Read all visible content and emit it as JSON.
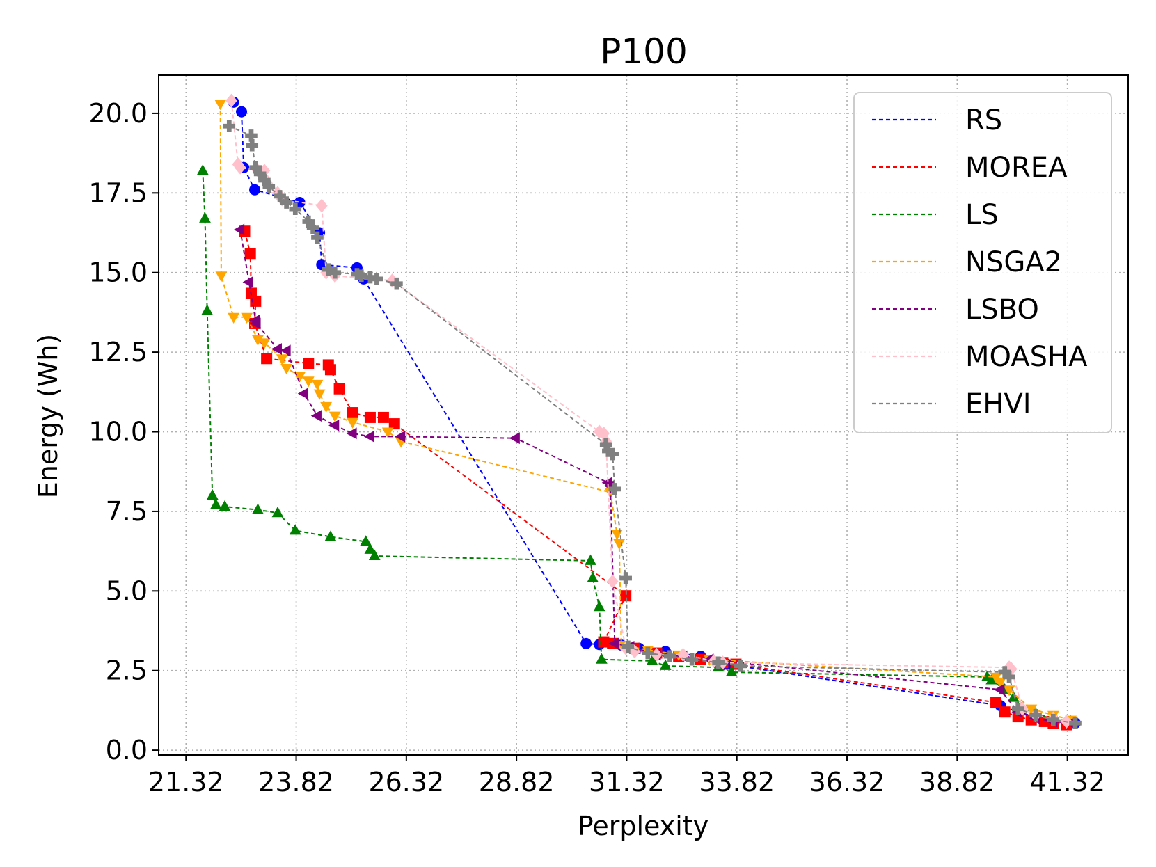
{
  "chart_data": {
    "type": "scatter",
    "title": "P100",
    "xlabel": "Perplexity",
    "ylabel": "Energy (Wh)",
    "xlim": [
      20.7,
      42.7
    ],
    "ylim": [
      -0.15,
      21.2
    ],
    "xticks": [
      "21.32",
      "23.82",
      "26.32",
      "28.82",
      "31.32",
      "33.82",
      "36.32",
      "38.82",
      "41.32"
    ],
    "xtick_values": [
      21.32,
      23.82,
      26.32,
      28.82,
      31.32,
      33.82,
      36.32,
      38.82,
      41.32
    ],
    "yticks": [
      "0.0",
      "2.5",
      "5.0",
      "7.5",
      "10.0",
      "12.5",
      "15.0",
      "17.5",
      "20.0"
    ],
    "ytick_values": [
      0,
      2.5,
      5,
      7.5,
      10,
      12.5,
      15,
      17.5,
      20
    ],
    "grid": true,
    "legend_position": "top-right",
    "series": [
      {
        "name": "RS",
        "color": "#0000ff",
        "marker": "circle",
        "x": [
          22.4,
          22.58,
          22.63,
          22.88,
          23.9,
          24.35,
          24.4,
          25.2,
          25.35,
          30.4,
          30.7,
          31.2,
          31.6,
          32.2,
          33.0,
          33.6,
          39.8,
          40.2,
          40.6,
          41.0,
          41.5
        ],
        "y": [
          20.35,
          20.05,
          18.3,
          17.6,
          17.2,
          16.25,
          15.25,
          15.15,
          14.8,
          3.35,
          3.32,
          3.3,
          3.2,
          3.1,
          2.95,
          2.7,
          1.4,
          1.2,
          1.05,
          0.95,
          0.85
        ]
      },
      {
        "name": "MOREA",
        "color": "#ff0000",
        "marker": "square",
        "x": [
          22.65,
          22.78,
          22.8,
          22.9,
          22.88,
          23.15,
          24.1,
          24.55,
          24.6,
          24.8,
          25.1,
          25.5,
          25.8,
          26.05,
          31.3,
          30.8,
          31.0,
          31.5,
          32.0,
          32.5,
          33.0,
          33.5,
          33.8,
          39.7,
          39.9,
          40.2,
          40.5,
          40.8,
          41.0,
          41.3
        ],
        "y": [
          16.3,
          15.6,
          14.35,
          14.1,
          13.4,
          12.3,
          12.15,
          12.1,
          11.95,
          11.35,
          10.6,
          10.45,
          10.45,
          10.25,
          4.85,
          3.4,
          3.35,
          3.2,
          3.05,
          2.95,
          2.85,
          2.75,
          2.7,
          1.5,
          1.2,
          1.05,
          0.95,
          0.9,
          0.85,
          0.8
        ]
      },
      {
        "name": "LS",
        "color": "#008000",
        "marker": "triangle-up",
        "x": [
          21.7,
          21.75,
          21.8,
          21.92,
          22.0,
          22.2,
          22.95,
          23.4,
          23.8,
          24.6,
          25.4,
          25.5,
          25.6,
          30.5,
          30.55,
          30.7,
          30.75,
          31.9,
          32.2,
          33.4,
          33.7,
          39.5,
          39.6,
          39.9,
          40.1,
          40.3,
          40.6,
          41.0,
          41.4
        ],
        "y": [
          18.2,
          16.7,
          13.8,
          8.0,
          7.7,
          7.65,
          7.55,
          7.45,
          6.9,
          6.7,
          6.55,
          6.3,
          6.1,
          5.95,
          5.4,
          4.5,
          2.85,
          2.8,
          2.65,
          2.6,
          2.45,
          2.3,
          2.2,
          1.9,
          1.65,
          1.35,
          1.15,
          1.0,
          0.9
        ]
      },
      {
        "name": "NSGA2",
        "color": "#ffa500",
        "marker": "triangle-down",
        "x": [
          22.1,
          22.12,
          22.4,
          22.7,
          22.95,
          23.1,
          23.5,
          23.6,
          23.9,
          24.1,
          24.3,
          24.35,
          24.5,
          24.7,
          25.1,
          25.9,
          26.2,
          30.95,
          31.1,
          31.15,
          31.2,
          31.8,
          32.5,
          33.2,
          39.7,
          39.8,
          40.0,
          40.5,
          41.0,
          41.4
        ],
        "y": [
          20.3,
          14.9,
          13.6,
          13.6,
          12.9,
          12.8,
          12.3,
          12.0,
          11.75,
          11.6,
          11.5,
          11.2,
          10.8,
          10.5,
          10.3,
          10.0,
          9.7,
          8.1,
          6.8,
          6.5,
          3.3,
          3.15,
          3.0,
          2.85,
          2.3,
          2.15,
          1.9,
          1.3,
          1.1,
          0.95
        ]
      },
      {
        "name": "LSBO",
        "color": "#800080",
        "marker": "triangle-left",
        "x": [
          22.55,
          22.75,
          22.9,
          22.92,
          23.4,
          23.6,
          24.0,
          24.3,
          24.7,
          25.1,
          25.5,
          26.2,
          28.8,
          30.9,
          30.95,
          31.05,
          31.4,
          32.0,
          32.6,
          33.2,
          39.8,
          40.2,
          40.6,
          41.0,
          41.4
        ],
        "y": [
          16.35,
          14.7,
          13.5,
          13.4,
          12.6,
          12.55,
          11.2,
          10.5,
          10.2,
          9.95,
          9.85,
          9.85,
          9.8,
          8.4,
          8.3,
          3.35,
          3.25,
          3.0,
          2.95,
          2.85,
          1.9,
          1.2,
          1.0,
          0.9,
          0.85
        ]
      },
      {
        "name": "MOASHA",
        "color": "#ffc0cb",
        "marker": "diamond",
        "x": [
          22.35,
          22.5,
          22.55,
          22.95,
          23.1,
          23.4,
          23.5,
          24.4,
          24.5,
          24.7,
          26.0,
          30.7,
          30.8,
          30.85,
          31.0,
          31.3,
          31.5,
          32.0,
          32.6,
          33.3,
          33.5,
          40.0,
          40.05,
          40.3,
          40.6,
          41.0,
          41.3
        ],
        "y": [
          20.4,
          18.4,
          18.3,
          18.2,
          18.2,
          17.5,
          17.3,
          17.1,
          15.0,
          14.9,
          14.75,
          10.0,
          9.95,
          9.7,
          5.3,
          3.2,
          3.1,
          3.0,
          3.0,
          2.8,
          2.75,
          2.6,
          2.55,
          1.3,
          1.1,
          1.0,
          0.9
        ]
      },
      {
        "name": "EHVI",
        "color": "#808080",
        "marker": "plus",
        "x": [
          22.3,
          22.8,
          22.82,
          22.9,
          23.0,
          23.1,
          23.2,
          23.45,
          23.6,
          23.8,
          24.1,
          24.2,
          24.3,
          24.55,
          24.7,
          25.2,
          25.3,
          25.5,
          25.65,
          26.1,
          30.85,
          30.9,
          31.0,
          31.05,
          31.3,
          31.35,
          31.8,
          32.3,
          32.8,
          33.4,
          33.9,
          39.9,
          40.0,
          40.2,
          40.6,
          41.0,
          41.5
        ],
        "y": [
          19.6,
          19.3,
          19.0,
          18.3,
          18.1,
          17.9,
          17.7,
          17.4,
          17.2,
          17.0,
          16.6,
          16.4,
          16.1,
          15.1,
          15.0,
          14.95,
          14.9,
          14.85,
          14.8,
          14.65,
          9.6,
          9.4,
          9.3,
          8.2,
          5.4,
          3.25,
          3.05,
          2.95,
          2.85,
          2.75,
          2.65,
          2.45,
          2.3,
          1.3,
          1.1,
          0.95,
          0.85
        ]
      }
    ]
  }
}
